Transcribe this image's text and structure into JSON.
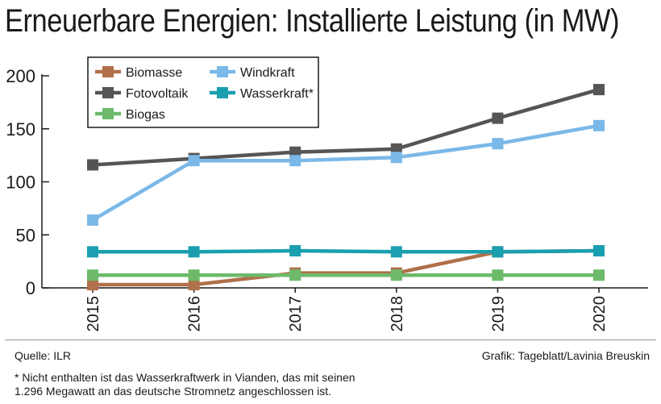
{
  "title": "Erneuerbare Energien: Installierte Leistung (in MW)",
  "source": "Quelle: ILR",
  "credit": "Grafik: Tageblatt/Lavinia Breuskin",
  "footnote_line1": "* Nicht enthalten ist das Wasserkraftwerk in Vianden, das mit seinen",
  "footnote_line2": "1.296 Megawatt an das deutsche Stromnetz angeschlossen ist.",
  "chart_data": {
    "type": "line",
    "x": [
      "2015",
      "2016",
      "2017",
      "2018",
      "2019",
      "2020"
    ],
    "ylim": [
      0,
      200
    ],
    "yticks": [
      0,
      50,
      100,
      150,
      200
    ],
    "grid": false,
    "legend_position": "top-left",
    "series": [
      {
        "name": "Biomasse",
        "color": "#b0704a",
        "values": [
          3,
          3,
          14,
          14,
          34,
          35
        ]
      },
      {
        "name": "Fotovoltaik",
        "color": "#555555",
        "values": [
          116,
          122,
          128,
          131,
          160,
          187
        ]
      },
      {
        "name": "Biogas",
        "color": "#6cba6a",
        "values": [
          12,
          12,
          12,
          12,
          12,
          12
        ]
      },
      {
        "name": "Windkraft",
        "color": "#7ab8e8",
        "values": [
          64,
          120,
          120,
          123,
          136,
          153
        ]
      },
      {
        "name": "Wasserkraft*",
        "color": "#1a9fb0",
        "values": [
          34,
          34,
          35,
          34,
          34,
          35
        ]
      }
    ]
  }
}
